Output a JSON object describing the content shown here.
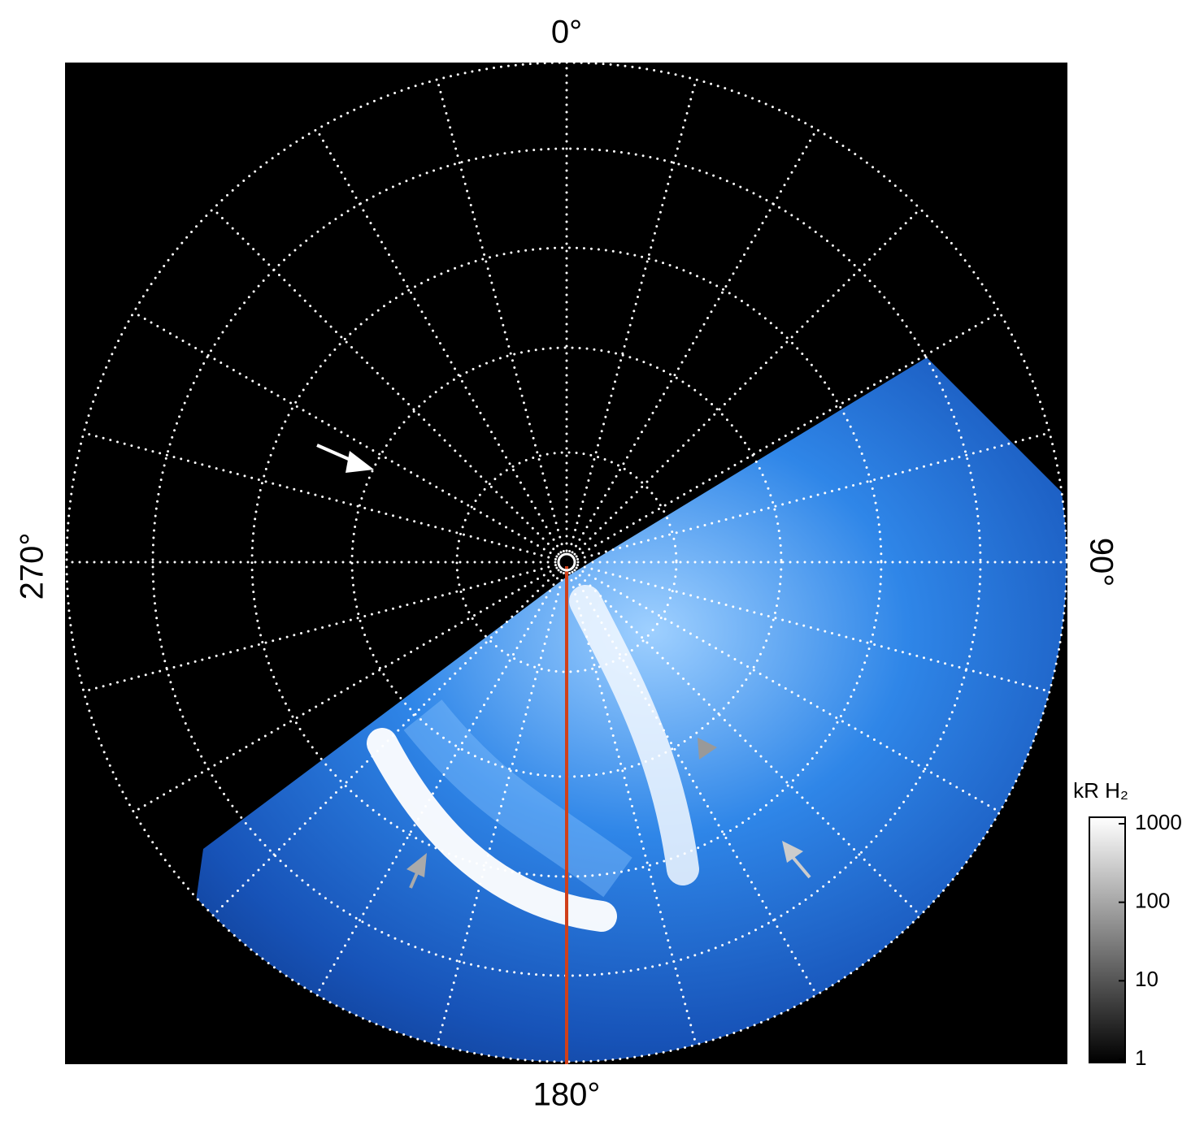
{
  "angle_labels": {
    "top": "0°",
    "right": "90°",
    "bottom": "180°",
    "left": "270°"
  },
  "colorbar": {
    "title": "kR H₂",
    "scale": "log",
    "lim": [
      1,
      1000
    ],
    "ticks": [
      1,
      10,
      100,
      1000
    ]
  }
}
